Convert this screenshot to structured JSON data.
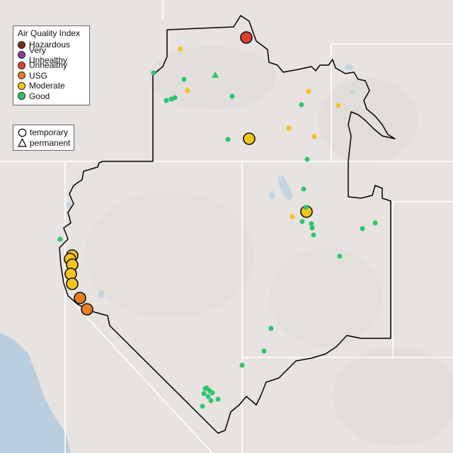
{
  "legend_aqi": {
    "title": "Air Quality Index",
    "items": [
      {
        "label": "Hazardous",
        "color": "#7e2a1f"
      },
      {
        "label": "Very Unhealthy",
        "color": "#8b3fa0"
      },
      {
        "label": "Unhealthy",
        "color": "#e0412f"
      },
      {
        "label": "USG",
        "color": "#e97d22"
      },
      {
        "label": "Moderate",
        "color": "#f4c418"
      },
      {
        "label": "Good",
        "color": "#2ec56f"
      }
    ]
  },
  "legend_type": {
    "items": [
      {
        "label": "temporary",
        "icon": "circle-icon"
      },
      {
        "label": "permanent",
        "icon": "triangle-icon"
      }
    ]
  },
  "colors": {
    "land": "#e6e3e0",
    "ocean": "#b9cfdf",
    "water": "#c3d5e3",
    "state_border": "#ffffff",
    "region_border": "#000000"
  }
}
